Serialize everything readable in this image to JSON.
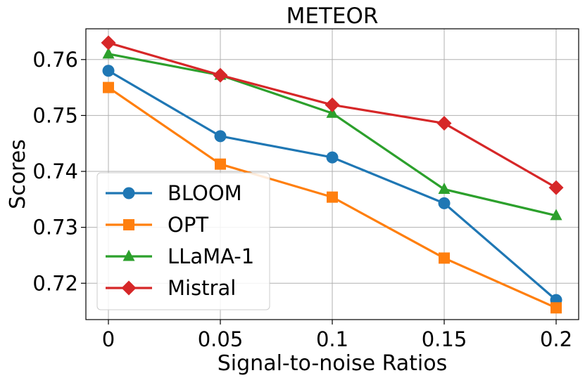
{
  "chart_data": {
    "type": "line",
    "title": "METEOR",
    "xlabel": "Signal-to-noise Ratios",
    "ylabel": "Scores",
    "categories": [
      "0",
      "0.05",
      "0.1",
      "0.15",
      "0.2"
    ],
    "yticks": [
      "0.72",
      "0.73",
      "0.74",
      "0.75",
      "0.76"
    ],
    "ylim": [
      0.7135,
      0.7655
    ],
    "grid": true,
    "legend_position": "lower-left",
    "series": [
      {
        "name": "BLOOM",
        "color": "#1f77b4",
        "marker": "circle",
        "values": [
          0.758,
          0.7463,
          0.7425,
          0.7343,
          0.717
        ]
      },
      {
        "name": "OPT",
        "color": "#ff7f0e",
        "marker": "square",
        "values": [
          0.755,
          0.7413,
          0.7354,
          0.7245,
          0.7156
        ]
      },
      {
        "name": "LLaMA-1",
        "color": "#2ca02c",
        "marker": "triangle",
        "values": [
          0.761,
          0.7572,
          0.7504,
          0.7368,
          0.7321
        ]
      },
      {
        "name": "Mistral",
        "color": "#d62728",
        "marker": "diamond",
        "values": [
          0.763,
          0.7572,
          0.7519,
          0.7486,
          0.7371
        ]
      }
    ]
  }
}
